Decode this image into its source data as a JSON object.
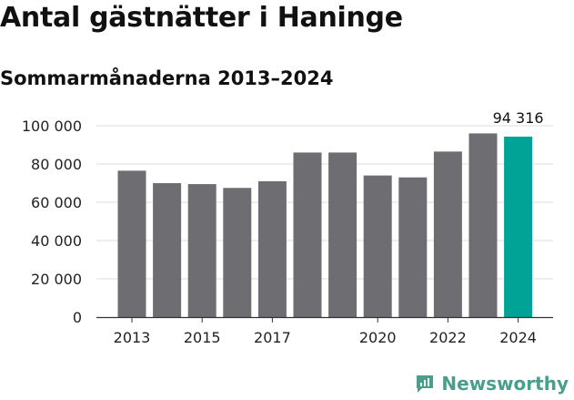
{
  "brand": {
    "name": "Newsworthy",
    "color": "#4a9e8e"
  },
  "chart_data": {
    "type": "bar",
    "title": "Antal gästnätter i Haninge",
    "subtitle": "Sommarmånaderna 2013–2024",
    "categories": [
      "2013",
      "2014",
      "2015",
      "2016",
      "2017",
      "2018",
      "2019",
      "2020",
      "2021",
      "2022",
      "2023",
      "2024"
    ],
    "values": [
      76500,
      70000,
      69500,
      67500,
      71000,
      86000,
      86000,
      74000,
      73000,
      86500,
      96000,
      94316
    ],
    "x_tick_labels": [
      {
        "category": "2013",
        "label": "2013"
      },
      {
        "category": "2015",
        "label": "2015"
      },
      {
        "category": "2017",
        "label": "2017"
      },
      {
        "category": "2020",
        "label": "2020"
      },
      {
        "category": "2022",
        "label": "2022"
      },
      {
        "category": "2024",
        "label": "2024"
      }
    ],
    "y_ticks": [
      0,
      20000,
      40000,
      60000,
      80000,
      100000
    ],
    "y_tick_labels": [
      "0",
      "20 000",
      "40 000",
      "60 000",
      "80 000",
      "100 000"
    ],
    "ylim": [
      0,
      100000
    ],
    "grid": true,
    "highlight": {
      "category": "2024",
      "label": "94 316",
      "color": "#00a396"
    },
    "bar_color": "#6e6d72",
    "xlabel": "",
    "ylabel": ""
  }
}
